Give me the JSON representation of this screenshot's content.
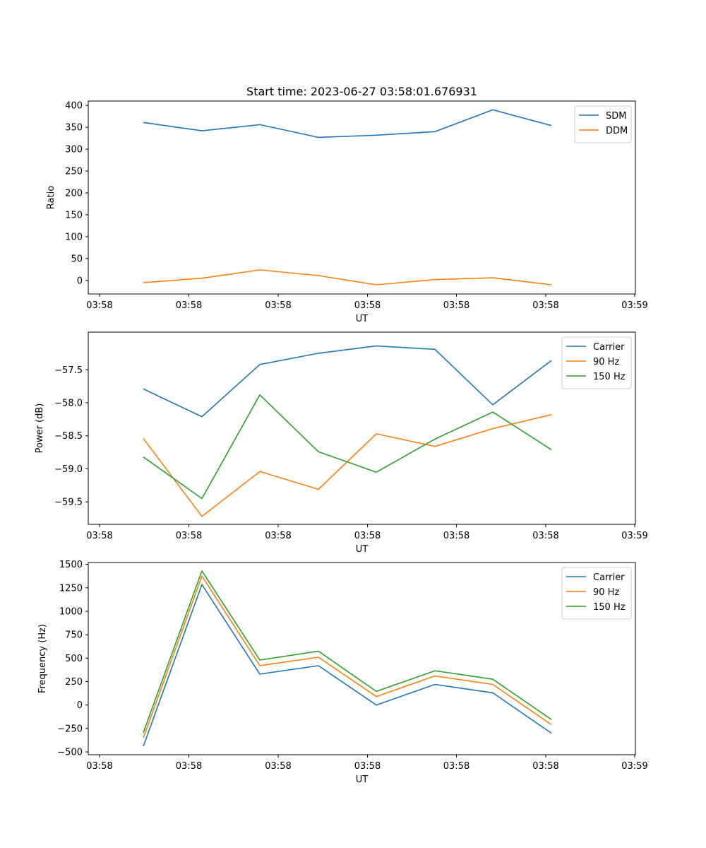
{
  "chart_data": [
    {
      "type": "line",
      "title": "Start time: 2023-06-27 03:58:01.676931",
      "xlabel": "UT",
      "ylabel": "Ratio",
      "x_tick_labels": [
        "03:58",
        "03:58",
        "03:58",
        "03:58",
        "03:58",
        "03:58",
        "03:59"
      ],
      "ylim": [
        -31,
        410
      ],
      "y_ticks": [
        0,
        50,
        100,
        150,
        200,
        250,
        300,
        350,
        400
      ],
      "legend": "top-right",
      "series": [
        {
          "name": "SDM",
          "color": "#1f77b4",
          "values": [
            361,
            342,
            356,
            327,
            332,
            340,
            390,
            354
          ]
        },
        {
          "name": "DDM",
          "color": "#ff7f0e",
          "values": [
            -5,
            5,
            24,
            11,
            -10,
            2,
            6,
            -10
          ]
        }
      ]
    },
    {
      "type": "line",
      "title": "",
      "xlabel": "UT",
      "ylabel": "Power (dB)",
      "x_tick_labels": [
        "03:58",
        "03:58",
        "03:58",
        "03:58",
        "03:58",
        "03:58",
        "03:59"
      ],
      "ylim": [
        -59.84,
        -56.93
      ],
      "y_ticks": [
        -59.5,
        -59.0,
        -58.5,
        -58.0,
        -57.5
      ],
      "y_tick_labels": [
        "−59.5",
        "−59.0",
        "−58.5",
        "−58.0",
        "−57.5"
      ],
      "legend": "top-right",
      "series": [
        {
          "name": "Carrier",
          "color": "#1f77b4",
          "values": [
            -57.79,
            -58.21,
            -57.42,
            -57.25,
            -57.14,
            -57.19,
            -58.03,
            -57.36
          ]
        },
        {
          "name": "90 Hz",
          "color": "#ff7f0e",
          "values": [
            -58.54,
            -59.72,
            -59.04,
            -59.31,
            -58.47,
            -58.66,
            -58.39,
            -58.18
          ]
        },
        {
          "name": "150 Hz",
          "color": "#2ca02c",
          "values": [
            -58.82,
            -59.45,
            -57.88,
            -58.74,
            -59.05,
            -58.55,
            -58.14,
            -58.71
          ]
        }
      ]
    },
    {
      "type": "line",
      "title": "",
      "xlabel": "UT",
      "ylabel": "Frequency (Hz)",
      "x_tick_labels": [
        "03:58",
        "03:58",
        "03:58",
        "03:58",
        "03:58",
        "03:58",
        "03:59"
      ],
      "ylim": [
        -530,
        1520
      ],
      "y_ticks": [
        -500,
        -250,
        0,
        250,
        500,
        750,
        1000,
        1250,
        1500
      ],
      "y_tick_labels": [
        "−500",
        "−250",
        "0",
        "250",
        "500",
        "750",
        "1000",
        "1250",
        "1500"
      ],
      "legend": "top-right",
      "series": [
        {
          "name": "Carrier",
          "color": "#1f77b4",
          "values": [
            -440,
            1285,
            330,
            420,
            0,
            220,
            130,
            -300
          ]
        },
        {
          "name": "90 Hz",
          "color": "#ff7f0e",
          "values": [
            -350,
            1375,
            420,
            510,
            90,
            310,
            220,
            -210
          ]
        },
        {
          "name": "150 Hz",
          "color": "#2ca02c",
          "values": [
            -295,
            1430,
            480,
            575,
            145,
            365,
            275,
            -155
          ]
        }
      ]
    }
  ]
}
